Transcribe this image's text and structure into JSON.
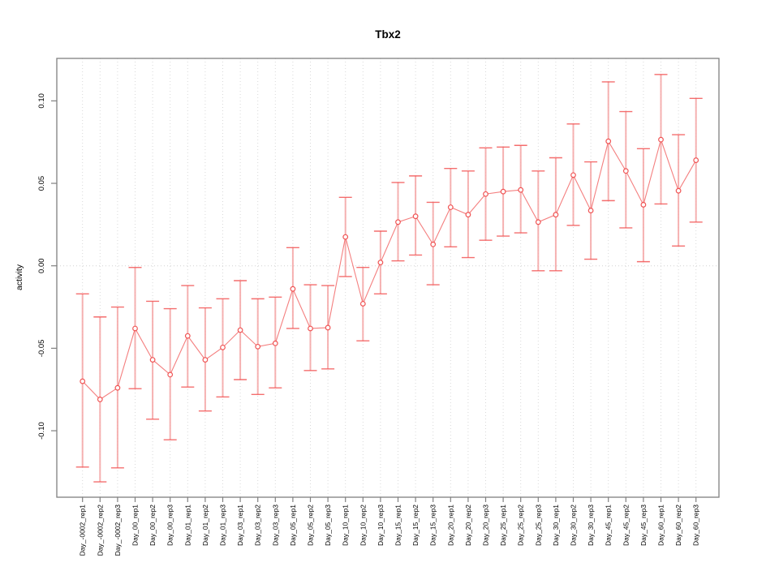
{
  "window": {
    "background": "#ffffff"
  },
  "chart_data": {
    "type": "scatter",
    "title": "Tbx2",
    "xlabel": "",
    "ylabel": "activity",
    "legend": "none",
    "grid": {
      "vertical_dotted_per_category": true,
      "zero_line_dotted": true
    },
    "ylim": [
      -0.14,
      0.126
    ],
    "yticks": {
      "values": [
        -0.1,
        -0.05,
        0.0,
        0.05,
        0.1
      ],
      "labels": [
        "-0.10",
        "-0.05",
        "0.00",
        "0.05",
        "0.10"
      ]
    },
    "categories": [
      "Day_-0002_rep1",
      "Day_-0002_rep2",
      "Day_-0002_rep3",
      "Day_00_rep1",
      "Day_00_rep2",
      "Day_00_rep3",
      "Day_01_rep1",
      "Day_01_rep2",
      "Day_01_rep3",
      "Day_03_rep1",
      "Day_03_rep2",
      "Day_03_rep3",
      "Day_05_rep1",
      "Day_05_rep2",
      "Day_05_rep3",
      "Day_10_rep1",
      "Day_10_rep2",
      "Day_10_rep3",
      "Day_15_rep1",
      "Day_15_rep2",
      "Day_15_rep3",
      "Day_20_rep1",
      "Day_20_rep2",
      "Day_20_rep3",
      "Day_25_rep1",
      "Day_25_rep2",
      "Day_25_rep3",
      "Day_30_rep1",
      "Day_30_rep2",
      "Day_30_rep3",
      "Day_45_rep1",
      "Day_45_rep2",
      "Day_45_rep3",
      "Day_60_rep1",
      "Day_60_rep2",
      "Day_60_rep3"
    ],
    "values": [
      -0.07,
      -0.081,
      -0.074,
      -0.038,
      -0.057,
      -0.066,
      -0.0425,
      -0.057,
      -0.0495,
      -0.039,
      -0.049,
      -0.047,
      -0.014,
      -0.038,
      -0.0375,
      0.0175,
      -0.023,
      0.002,
      0.0265,
      0.03,
      0.013,
      0.0355,
      0.031,
      0.0435,
      0.045,
      0.046,
      0.0265,
      0.031,
      0.055,
      0.0335,
      0.0755,
      0.0575,
      0.037,
      0.0765,
      0.0455,
      0.064
    ],
    "ci_low": [
      -0.122,
      -0.131,
      -0.1225,
      -0.0745,
      -0.093,
      -0.1055,
      -0.0735,
      -0.088,
      -0.0795,
      -0.069,
      -0.078,
      -0.074,
      -0.038,
      -0.0635,
      -0.0625,
      -0.0065,
      -0.0455,
      -0.017,
      0.003,
      0.0065,
      -0.0115,
      0.0115,
      0.005,
      0.0155,
      0.018,
      0.02,
      -0.003,
      -0.003,
      0.0245,
      0.004,
      0.0395,
      0.023,
      0.0025,
      0.0375,
      0.012,
      0.0265
    ],
    "ci_high": [
      -0.017,
      -0.031,
      -0.025,
      -0.001,
      -0.0215,
      -0.026,
      -0.012,
      -0.0255,
      -0.02,
      -0.009,
      -0.02,
      -0.019,
      0.011,
      -0.0115,
      -0.012,
      0.0415,
      -0.001,
      0.021,
      0.0505,
      0.0545,
      0.0385,
      0.059,
      0.0575,
      0.0715,
      0.072,
      0.073,
      0.0575,
      0.0655,
      0.086,
      0.063,
      0.1115,
      0.0935,
      0.071,
      0.116,
      0.0795,
      0.1015
    ],
    "colors": {
      "error_bar": "#f5a3a3",
      "error_cap": "#f25555",
      "line": "#f26868",
      "point_stroke": "#ee4444",
      "point_fill": "#ffffff",
      "grid": "#d9d9d9",
      "zero_line": "#d2d2d2",
      "frame": "#808080",
      "text": "#000000"
    }
  }
}
